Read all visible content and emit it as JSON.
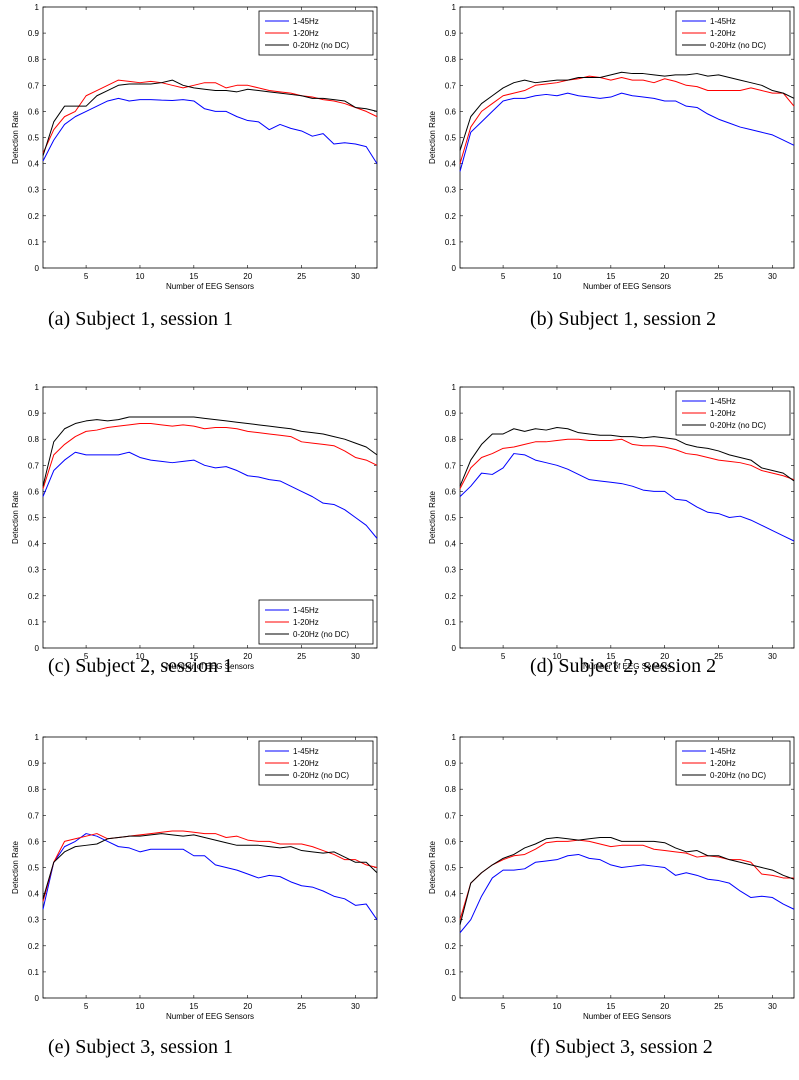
{
  "chart_data": [
    {
      "type": "line",
      "caption": "(a) Subject 1, session 1",
      "xlabel": "Number of EEG Sensors",
      "ylabel": "Detection Rate",
      "xlim": [
        1,
        32
      ],
      "ylim": [
        0,
        1
      ],
      "xticks": [
        5,
        10,
        15,
        20,
        25,
        30
      ],
      "yticks": [
        0,
        0.1,
        0.2,
        0.3,
        0.4,
        0.5,
        0.6,
        0.7,
        0.8,
        0.9,
        1
      ],
      "legend": "top-right",
      "x": [
        1,
        2,
        3,
        4,
        5,
        6,
        7,
        8,
        9,
        10,
        11,
        12,
        13,
        14,
        15,
        16,
        17,
        18,
        19,
        20,
        21,
        22,
        23,
        24,
        25,
        26,
        27,
        28,
        29,
        30,
        31,
        32
      ],
      "series": [
        {
          "name": "1-45Hz",
          "color": "#0000ff",
          "values": [
            0.41,
            0.49,
            0.55,
            0.58,
            0.6,
            0.62,
            0.64,
            0.65,
            0.64,
            0.645,
            0.645,
            0.643,
            0.642,
            0.645,
            0.64,
            0.61,
            0.6,
            0.6,
            0.58,
            0.565,
            0.56,
            0.53,
            0.55,
            0.535,
            0.525,
            0.505,
            0.515,
            0.475,
            0.48,
            0.475,
            0.465,
            0.4
          ]
        },
        {
          "name": "1-20Hz",
          "color": "#ff0000",
          "values": [
            0.44,
            0.53,
            0.58,
            0.6,
            0.66,
            0.68,
            0.7,
            0.72,
            0.715,
            0.71,
            0.715,
            0.71,
            0.7,
            0.69,
            0.7,
            0.71,
            0.71,
            0.69,
            0.7,
            0.7,
            0.69,
            0.68,
            0.675,
            0.67,
            0.66,
            0.655,
            0.645,
            0.64,
            0.63,
            0.615,
            0.6,
            0.58
          ]
        },
        {
          "name": "0-20Hz (no DC)",
          "color": "#000000",
          "values": [
            0.43,
            0.56,
            0.62,
            0.62,
            0.62,
            0.66,
            0.68,
            0.7,
            0.705,
            0.705,
            0.705,
            0.71,
            0.72,
            0.7,
            0.69,
            0.685,
            0.68,
            0.68,
            0.675,
            0.685,
            0.68,
            0.675,
            0.67,
            0.665,
            0.66,
            0.65,
            0.65,
            0.645,
            0.64,
            0.615,
            0.61,
            0.6
          ]
        }
      ]
    },
    {
      "type": "line",
      "caption": "(b) Subject 1, session 2",
      "xlabel": "Number of EEG Sensors",
      "ylabel": "Detection Rate",
      "xlim": [
        1,
        32
      ],
      "ylim": [
        0,
        1
      ],
      "xticks": [
        5,
        10,
        15,
        20,
        25,
        30
      ],
      "yticks": [
        0,
        0.1,
        0.2,
        0.3,
        0.4,
        0.5,
        0.6,
        0.7,
        0.8,
        0.9,
        1
      ],
      "legend": "top-right",
      "x": [
        1,
        2,
        3,
        4,
        5,
        6,
        7,
        8,
        9,
        10,
        11,
        12,
        13,
        14,
        15,
        16,
        17,
        18,
        19,
        20,
        21,
        22,
        23,
        24,
        25,
        26,
        27,
        28,
        29,
        30,
        31,
        32
      ],
      "series": [
        {
          "name": "1-45Hz",
          "color": "#0000ff",
          "values": [
            0.37,
            0.52,
            0.56,
            0.6,
            0.64,
            0.65,
            0.65,
            0.66,
            0.665,
            0.66,
            0.67,
            0.66,
            0.655,
            0.65,
            0.655,
            0.67,
            0.66,
            0.655,
            0.65,
            0.64,
            0.64,
            0.62,
            0.615,
            0.59,
            0.57,
            0.555,
            0.54,
            0.53,
            0.52,
            0.51,
            0.49,
            0.47
          ]
        },
        {
          "name": "1-20Hz",
          "color": "#ff0000",
          "values": [
            0.4,
            0.54,
            0.6,
            0.63,
            0.66,
            0.67,
            0.68,
            0.7,
            0.705,
            0.71,
            0.72,
            0.725,
            0.735,
            0.73,
            0.72,
            0.73,
            0.72,
            0.72,
            0.71,
            0.725,
            0.715,
            0.7,
            0.695,
            0.68,
            0.68,
            0.68,
            0.68,
            0.69,
            0.68,
            0.67,
            0.67,
            0.62
          ]
        },
        {
          "name": "0-20Hz (no DC)",
          "color": "#000000",
          "values": [
            0.45,
            0.58,
            0.63,
            0.66,
            0.69,
            0.71,
            0.72,
            0.71,
            0.715,
            0.72,
            0.72,
            0.73,
            0.73,
            0.73,
            0.74,
            0.75,
            0.745,
            0.745,
            0.74,
            0.735,
            0.74,
            0.74,
            0.745,
            0.735,
            0.74,
            0.73,
            0.72,
            0.71,
            0.7,
            0.68,
            0.67,
            0.65
          ]
        }
      ]
    },
    {
      "type": "line",
      "caption": "(c) Subject 2, session 1",
      "xlabel": "Number of EEG Sensors",
      "ylabel": "Detection Rate",
      "xlim": [
        1,
        32
      ],
      "ylim": [
        0,
        1
      ],
      "xticks": [
        5,
        10,
        15,
        20,
        25,
        30
      ],
      "yticks": [
        0,
        0.1,
        0.2,
        0.3,
        0.4,
        0.5,
        0.6,
        0.7,
        0.8,
        0.9,
        1
      ],
      "legend": "bottom-right",
      "x": [
        1,
        2,
        3,
        4,
        5,
        6,
        7,
        8,
        9,
        10,
        11,
        12,
        13,
        14,
        15,
        16,
        17,
        18,
        19,
        20,
        21,
        22,
        23,
        24,
        25,
        26,
        27,
        28,
        29,
        30,
        31,
        32
      ],
      "series": [
        {
          "name": "1-45Hz",
          "color": "#0000ff",
          "values": [
            0.58,
            0.68,
            0.72,
            0.75,
            0.74,
            0.74,
            0.74,
            0.74,
            0.75,
            0.73,
            0.72,
            0.715,
            0.71,
            0.715,
            0.72,
            0.7,
            0.69,
            0.695,
            0.68,
            0.66,
            0.655,
            0.645,
            0.64,
            0.62,
            0.6,
            0.58,
            0.555,
            0.55,
            0.53,
            0.5,
            0.47,
            0.42
          ]
        },
        {
          "name": "1-20Hz",
          "color": "#ff0000",
          "values": [
            0.61,
            0.74,
            0.78,
            0.81,
            0.83,
            0.835,
            0.845,
            0.85,
            0.855,
            0.86,
            0.86,
            0.855,
            0.85,
            0.855,
            0.85,
            0.84,
            0.845,
            0.845,
            0.84,
            0.83,
            0.825,
            0.82,
            0.815,
            0.81,
            0.79,
            0.785,
            0.78,
            0.775,
            0.755,
            0.73,
            0.72,
            0.7
          ]
        },
        {
          "name": "0-20Hz (no DC)",
          "color": "#000000",
          "values": [
            0.62,
            0.79,
            0.84,
            0.86,
            0.87,
            0.875,
            0.87,
            0.875,
            0.885,
            0.885,
            0.885,
            0.885,
            0.885,
            0.885,
            0.885,
            0.88,
            0.875,
            0.87,
            0.865,
            0.86,
            0.855,
            0.85,
            0.845,
            0.84,
            0.83,
            0.825,
            0.82,
            0.81,
            0.8,
            0.785,
            0.77,
            0.74
          ]
        }
      ]
    },
    {
      "type": "line",
      "caption": "(d) Subject 2, session 2",
      "xlabel": "Number of EEG Sensors",
      "ylabel": "Detection Rate",
      "xlim": [
        1,
        32
      ],
      "ylim": [
        0,
        1
      ],
      "xticks": [
        5,
        10,
        15,
        20,
        25,
        30
      ],
      "yticks": [
        0,
        0.1,
        0.2,
        0.3,
        0.4,
        0.5,
        0.6,
        0.7,
        0.8,
        0.9,
        1
      ],
      "legend": "top-right",
      "x": [
        1,
        2,
        3,
        4,
        5,
        6,
        7,
        8,
        9,
        10,
        11,
        12,
        13,
        14,
        15,
        16,
        17,
        18,
        19,
        20,
        21,
        22,
        23,
        24,
        25,
        26,
        27,
        28,
        29,
        30,
        31,
        32
      ],
      "series": [
        {
          "name": "1-45Hz",
          "color": "#0000ff",
          "values": [
            0.58,
            0.62,
            0.67,
            0.665,
            0.69,
            0.745,
            0.74,
            0.72,
            0.71,
            0.7,
            0.685,
            0.665,
            0.645,
            0.64,
            0.635,
            0.63,
            0.62,
            0.605,
            0.6,
            0.6,
            0.57,
            0.565,
            0.54,
            0.52,
            0.515,
            0.5,
            0.505,
            0.49,
            0.47,
            0.45,
            0.43,
            0.41
          ]
        },
        {
          "name": "1-20Hz",
          "color": "#ff0000",
          "values": [
            0.61,
            0.69,
            0.73,
            0.745,
            0.765,
            0.77,
            0.78,
            0.79,
            0.79,
            0.795,
            0.8,
            0.8,
            0.795,
            0.795,
            0.795,
            0.8,
            0.78,
            0.775,
            0.775,
            0.77,
            0.76,
            0.745,
            0.74,
            0.73,
            0.72,
            0.715,
            0.71,
            0.7,
            0.68,
            0.67,
            0.66,
            0.645
          ]
        },
        {
          "name": "0-20Hz (no DC)",
          "color": "#000000",
          "values": [
            0.62,
            0.72,
            0.78,
            0.82,
            0.82,
            0.84,
            0.83,
            0.84,
            0.835,
            0.845,
            0.84,
            0.825,
            0.82,
            0.815,
            0.815,
            0.81,
            0.81,
            0.805,
            0.81,
            0.805,
            0.8,
            0.78,
            0.77,
            0.765,
            0.755,
            0.74,
            0.73,
            0.72,
            0.69,
            0.68,
            0.67,
            0.64
          ]
        }
      ]
    },
    {
      "type": "line",
      "caption": "(e) Subject 3, session 1",
      "xlabel": "Number of EEG Sensors",
      "ylabel": "Detection Rate",
      "xlim": [
        1,
        32
      ],
      "ylim": [
        0,
        1
      ],
      "xticks": [
        5,
        10,
        15,
        20,
        25,
        30
      ],
      "yticks": [
        0,
        0.1,
        0.2,
        0.3,
        0.4,
        0.5,
        0.6,
        0.7,
        0.8,
        0.9,
        1
      ],
      "legend": "top-right",
      "x": [
        1,
        2,
        3,
        4,
        5,
        6,
        7,
        8,
        9,
        10,
        11,
        12,
        13,
        14,
        15,
        16,
        17,
        18,
        19,
        20,
        21,
        22,
        23,
        24,
        25,
        26,
        27,
        28,
        29,
        30,
        31,
        32
      ],
      "series": [
        {
          "name": "1-45Hz",
          "color": "#0000ff",
          "values": [
            0.34,
            0.52,
            0.58,
            0.6,
            0.63,
            0.62,
            0.6,
            0.58,
            0.575,
            0.56,
            0.57,
            0.57,
            0.57,
            0.57,
            0.545,
            0.545,
            0.51,
            0.5,
            0.49,
            0.475,
            0.46,
            0.47,
            0.465,
            0.445,
            0.43,
            0.425,
            0.41,
            0.39,
            0.38,
            0.355,
            0.36,
            0.3
          ]
        },
        {
          "name": "1-20Hz",
          "color": "#ff0000",
          "values": [
            0.37,
            0.52,
            0.6,
            0.61,
            0.62,
            0.63,
            0.61,
            0.615,
            0.62,
            0.625,
            0.63,
            0.635,
            0.64,
            0.64,
            0.635,
            0.63,
            0.63,
            0.615,
            0.62,
            0.605,
            0.6,
            0.6,
            0.59,
            0.59,
            0.59,
            0.58,
            0.565,
            0.55,
            0.53,
            0.53,
            0.51,
            0.5
          ]
        },
        {
          "name": "0-20Hz (no DC)",
          "color": "#000000",
          "values": [
            0.38,
            0.52,
            0.56,
            0.58,
            0.585,
            0.59,
            0.61,
            0.615,
            0.62,
            0.62,
            0.625,
            0.63,
            0.625,
            0.62,
            0.625,
            0.615,
            0.605,
            0.595,
            0.585,
            0.585,
            0.585,
            0.58,
            0.575,
            0.58,
            0.565,
            0.56,
            0.555,
            0.56,
            0.54,
            0.52,
            0.52,
            0.48
          ]
        }
      ]
    },
    {
      "type": "line",
      "caption": "(f) Subject 3, session 2",
      "xlabel": "Number of EEG Sensors",
      "ylabel": "Detection Rate",
      "xlim": [
        1,
        32
      ],
      "ylim": [
        0,
        1
      ],
      "xticks": [
        5,
        10,
        15,
        20,
        25,
        30
      ],
      "yticks": [
        0,
        0.1,
        0.2,
        0.3,
        0.4,
        0.5,
        0.6,
        0.7,
        0.8,
        0.9,
        1
      ],
      "legend": "top-right",
      "x": [
        1,
        2,
        3,
        4,
        5,
        6,
        7,
        8,
        9,
        10,
        11,
        12,
        13,
        14,
        15,
        16,
        17,
        18,
        19,
        20,
        21,
        22,
        23,
        24,
        25,
        26,
        27,
        28,
        29,
        30,
        31,
        32
      ],
      "series": [
        {
          "name": "1-45Hz",
          "color": "#0000ff",
          "values": [
            0.25,
            0.3,
            0.39,
            0.46,
            0.49,
            0.49,
            0.495,
            0.52,
            0.525,
            0.53,
            0.545,
            0.55,
            0.535,
            0.53,
            0.51,
            0.5,
            0.505,
            0.51,
            0.505,
            0.5,
            0.47,
            0.48,
            0.47,
            0.455,
            0.45,
            0.44,
            0.41,
            0.385,
            0.39,
            0.385,
            0.36,
            0.34
          ]
        },
        {
          "name": "1-20Hz",
          "color": "#ff0000",
          "values": [
            0.3,
            0.44,
            0.48,
            0.51,
            0.53,
            0.545,
            0.55,
            0.57,
            0.595,
            0.6,
            0.6,
            0.605,
            0.6,
            0.59,
            0.58,
            0.585,
            0.585,
            0.585,
            0.57,
            0.565,
            0.56,
            0.555,
            0.54,
            0.545,
            0.54,
            0.53,
            0.53,
            0.52,
            0.475,
            0.47,
            0.46,
            0.46
          ]
        },
        {
          "name": "0-20Hz (no DC)",
          "color": "#000000",
          "values": [
            0.28,
            0.44,
            0.48,
            0.51,
            0.535,
            0.55,
            0.575,
            0.59,
            0.61,
            0.615,
            0.61,
            0.605,
            0.61,
            0.615,
            0.615,
            0.6,
            0.6,
            0.6,
            0.6,
            0.595,
            0.575,
            0.56,
            0.565,
            0.545,
            0.545,
            0.53,
            0.52,
            0.51,
            0.5,
            0.49,
            0.47,
            0.455
          ]
        }
      ]
    }
  ]
}
